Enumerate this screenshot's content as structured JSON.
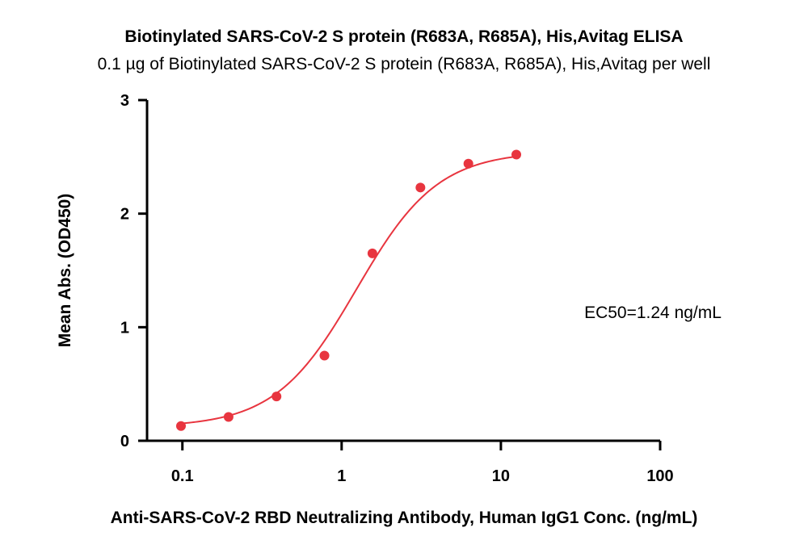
{
  "chart_data": {
    "type": "scatter",
    "title": "Biotinylated SARS-CoV-2 S protein (R683A, R685A), His,Avitag ELISA",
    "subtitle": "0.1 µg of Biotinylated SARS-CoV-2 S protein (R683A, R685A), His,Avitag per well",
    "xlabel": "Anti-SARS-CoV-2 RBD Neutralizing Antibody, Human IgG1 Conc. (ng/mL)",
    "ylabel": "Mean Abs. (OD450)",
    "xscale": "log",
    "xlim": [
      0.06,
      100
    ],
    "ylim": [
      0,
      3
    ],
    "x_ticks": [
      "0.1",
      "1",
      "10",
      "100"
    ],
    "y_ticks": [
      "0",
      "1",
      "2",
      "3"
    ],
    "annotation": "EC50=1.24 ng/mL",
    "color": "#e8353f",
    "series": [
      {
        "x": [
          0.098,
          0.195,
          0.39,
          0.78,
          1.56,
          3.125,
          6.25,
          12.5
        ],
        "y": [
          0.13,
          0.21,
          0.39,
          0.75,
          1.65,
          2.23,
          2.44,
          2.52
        ]
      }
    ],
    "fit": {
      "model": "4PL",
      "bottom": 0.12,
      "top": 2.55,
      "ec50": 1.24,
      "hill": 1.7
    }
  }
}
